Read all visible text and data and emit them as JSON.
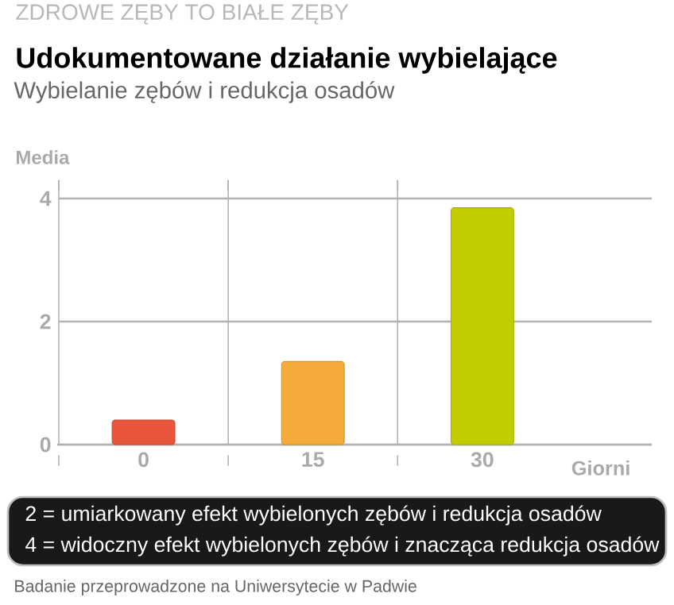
{
  "chart_data": {
    "type": "bar",
    "title": "Udokumentowane działanie wybielające",
    "subtitle": "Wybielanie zębów i redukcja osadów",
    "ylabel": "Media",
    "xlabel": "Giorni",
    "categories": [
      "0",
      "15",
      "30"
    ],
    "values": [
      0.4,
      1.35,
      3.85
    ],
    "colors": [
      "#e8553a",
      "#f5ab3a",
      "#c2cd00"
    ],
    "ylim": [
      0,
      4.3
    ],
    "yticks": [
      0,
      2,
      4
    ],
    "grid": true,
    "annotations": [
      "ZDROWE ZĘBY TO BIAŁE ZĘBY",
      "2 = umiarkowany efekt wybielonych zębów i redukcja osadów",
      "4 = widoczny efekt wybielonych zębów i znacząca redukcja osadów",
      "Badanie przeprowadzone na Uniwersytecie w Padwie"
    ]
  }
}
